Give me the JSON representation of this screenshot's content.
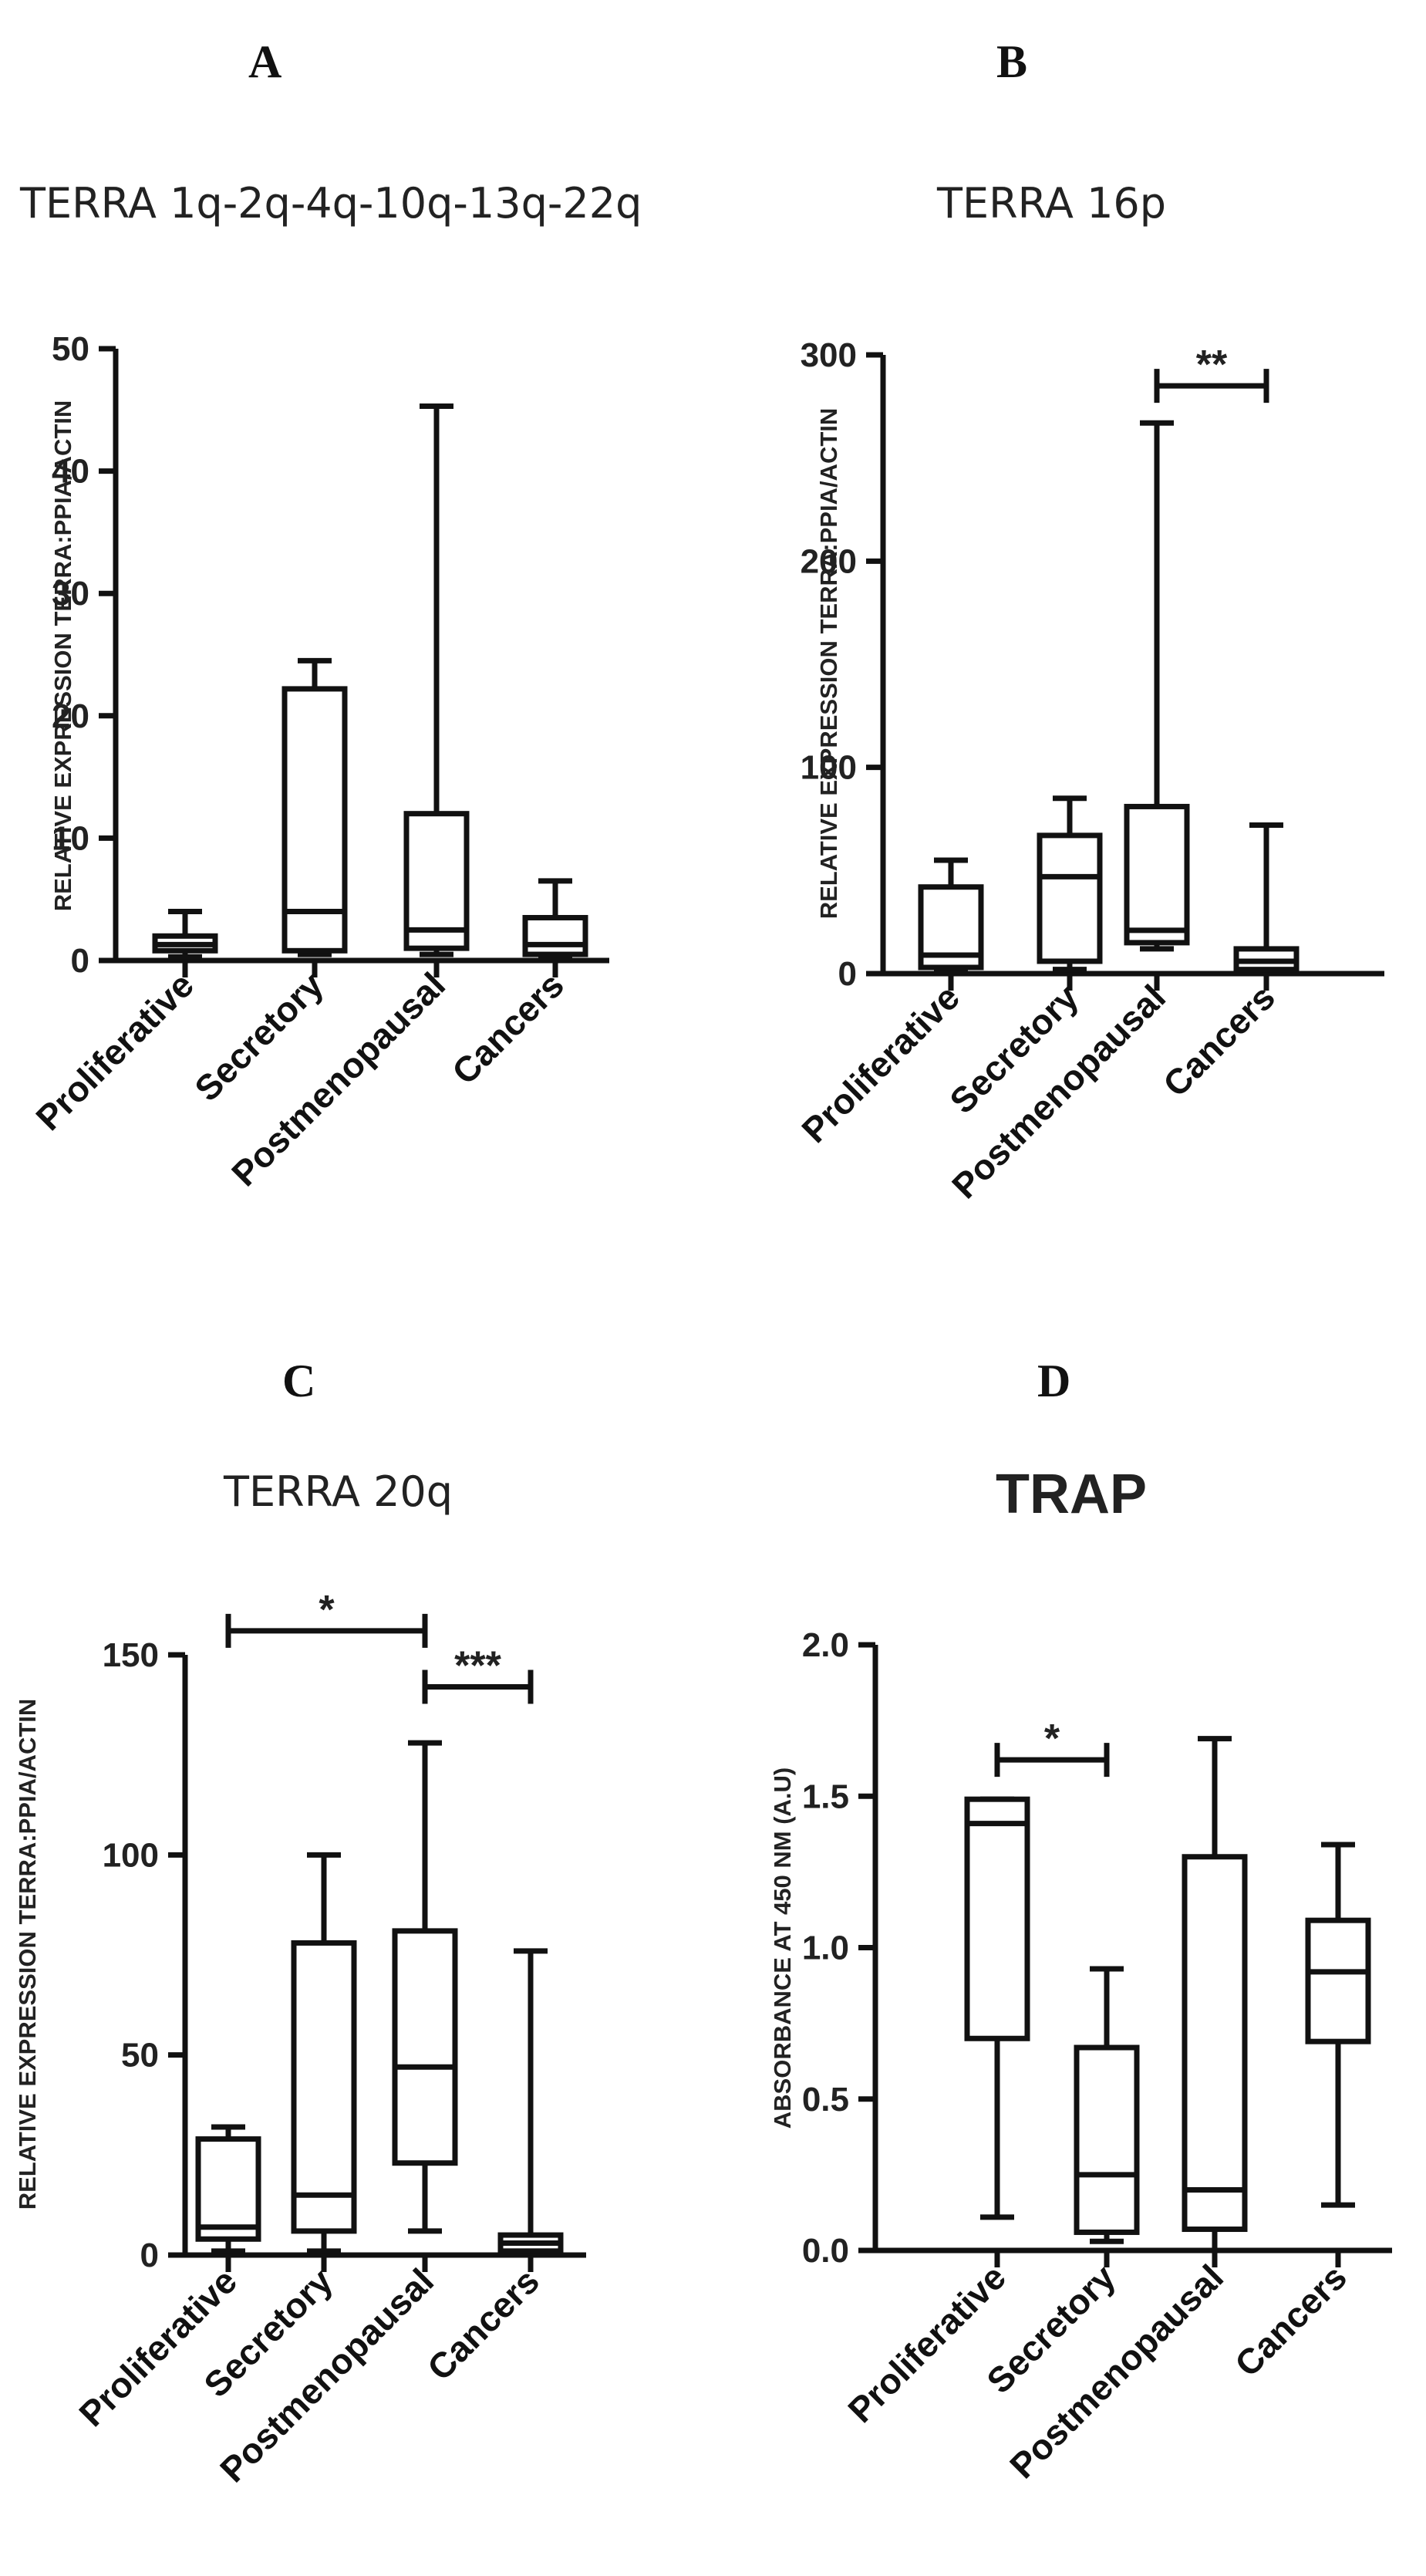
{
  "chart_data": [
    {
      "id": "A",
      "letter": "A",
      "type": "box",
      "title": "TERRA 1q-2q-4q-10q-13q-22q",
      "ylabel": "RELATIVE EXPRESSION TERRA:PPIA/ACTIN",
      "ylim": [
        0,
        50
      ],
      "yticks": [
        0,
        10,
        20,
        30,
        40,
        50
      ],
      "categories": [
        "Proliferative",
        "Secretory",
        "Postmenopausal",
        "Cancers"
      ],
      "boxes": [
        {
          "min": 0.3,
          "q1": 0.8,
          "median": 1.3,
          "q3": 2.0,
          "max": 4.0
        },
        {
          "min": 0.5,
          "q1": 0.8,
          "median": 4.0,
          "q3": 22.2,
          "max": 24.5
        },
        {
          "min": 0.5,
          "q1": 1.0,
          "median": 2.5,
          "q3": 12.0,
          "max": 45.3
        },
        {
          "min": 0.2,
          "q1": 0.5,
          "median": 1.3,
          "q3": 3.5,
          "max": 6.5
        }
      ],
      "significance": []
    },
    {
      "id": "B",
      "letter": "B",
      "type": "box",
      "title": "TERRA 16p",
      "ylabel": "RELATIVE EXPRESSION TERRA:PPIA/ACTIN",
      "ylim": [
        0,
        300
      ],
      "yticks": [
        0,
        100,
        200,
        300
      ],
      "categories": [
        "Proliferative",
        "Secretory",
        "Postmenopausal",
        "Cancers"
      ],
      "boxes": [
        {
          "min": 1,
          "q1": 3,
          "median": 9,
          "q3": 42,
          "max": 55
        },
        {
          "min": 2,
          "q1": 6,
          "median": 47,
          "q3": 67,
          "max": 85
        },
        {
          "min": 12,
          "q1": 15,
          "median": 21,
          "q3": 81,
          "max": 267
        },
        {
          "min": 1,
          "q1": 2,
          "median": 6,
          "q3": 12,
          "max": 72
        }
      ],
      "significance": [
        {
          "from": 2,
          "to": 3,
          "y": 285,
          "label": "**"
        }
      ]
    },
    {
      "id": "C",
      "letter": "C",
      "type": "box",
      "title": "TERRA 20q",
      "ylabel": "RELATIVE EXPRESSION TERRA:PPIA/ACTIN",
      "ylim": [
        0,
        150
      ],
      "yticks": [
        0,
        50,
        100,
        150
      ],
      "categories": [
        "Proliferative",
        "Secretory",
        "Postmenopausal",
        "Cancers"
      ],
      "boxes": [
        {
          "min": 1,
          "q1": 4,
          "median": 7,
          "q3": 29,
          "max": 32
        },
        {
          "min": 1,
          "q1": 6,
          "median": 15,
          "q3": 78,
          "max": 100
        },
        {
          "min": 6,
          "q1": 23,
          "median": 47,
          "q3": 81,
          "max": 128
        },
        {
          "min": 0.5,
          "q1": 1,
          "median": 3,
          "q3": 5,
          "max": 76
        }
      ],
      "significance": [
        {
          "from": 0,
          "to": 2,
          "y": 156,
          "label": "*"
        },
        {
          "from": 2,
          "to": 3,
          "y": 142,
          "label": "***"
        }
      ]
    },
    {
      "id": "D",
      "letter": "D",
      "type": "box",
      "title": "TRAP",
      "ylabel": "ABSORBANCE AT 450 NM (A.U)",
      "ylim": [
        0,
        2.0
      ],
      "yticks": [
        "0.0",
        "0.5",
        "1.0",
        "1.5",
        "2.0"
      ],
      "categories": [
        "Proliferative",
        "Secretory",
        "Postmenopausal",
        "Cancers"
      ],
      "boxes": [
        {
          "min": 0.11,
          "q1": 0.7,
          "median": 1.41,
          "q3": 1.49,
          "max": 1.49
        },
        {
          "min": 0.03,
          "q1": 0.06,
          "median": 0.25,
          "q3": 0.67,
          "max": 0.93
        },
        {
          "min": 0.0,
          "q1": 0.07,
          "median": 0.2,
          "q3": 1.3,
          "max": 1.69
        },
        {
          "min": 0.15,
          "q1": 0.69,
          "median": 0.92,
          "q3": 1.09,
          "max": 1.34
        }
      ],
      "significance": [
        {
          "from": 0,
          "to": 1,
          "y": 1.62,
          "label": "*"
        }
      ]
    }
  ]
}
